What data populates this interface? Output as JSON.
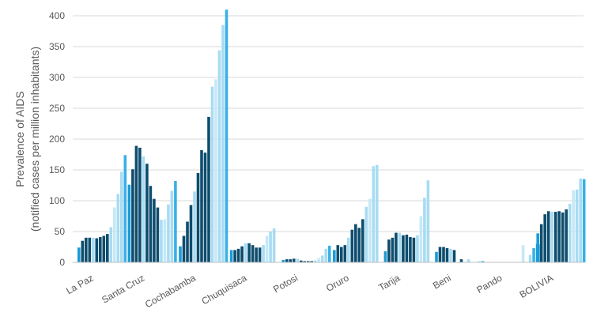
{
  "chart_data": {
    "type": "bar",
    "ylabel_line1": "Prevalence of AIDS",
    "ylabel_line2": "(notified cases per million inhabitants)",
    "ylim": [
      0,
      400
    ],
    "yticks": [
      0,
      50,
      100,
      150,
      200,
      250,
      300,
      350,
      400
    ],
    "grid": true,
    "legend": "none",
    "categories": [
      "La Paz",
      "Santa Cruz",
      "Cochabamba",
      "Chuquisaca",
      "Potosi",
      "Oruro",
      "Tarija",
      "Beni",
      "Pando",
      "BOLIVIA"
    ],
    "series_colors": [
      "#1a9bd7",
      "#0e4d6e",
      "#0e4d6e",
      "#0e4d6e",
      "#a8dcf2",
      "#0e4d6e",
      "#0e4d6e",
      "#0e4d6e",
      "#0e4d6e",
      "#a8dcf2",
      "#c6e8f7",
      "#a8dcf2",
      "#a8dcf2",
      "#39b0e5",
      "#1a9bd7",
      "#1a9bd7",
      "#1a9bd7",
      "#1a9bd7"
    ],
    "values": [
      [
        24,
        35,
        40,
        40,
        40,
        39,
        41,
        43,
        46,
        57,
        89,
        111,
        147,
        174
      ],
      [
        126,
        151,
        189,
        186,
        172,
        160,
        124,
        103,
        89,
        69,
        70,
        94,
        116,
        132
      ],
      [
        26,
        43,
        66,
        93,
        115,
        145,
        182,
        178,
        236,
        285,
        297,
        344,
        385,
        410
      ],
      [
        20,
        20,
        22,
        26,
        31,
        31,
        28,
        24,
        24,
        28,
        43,
        50,
        55
      ],
      [
        4,
        5,
        5,
        6,
        6,
        3,
        2,
        2,
        2,
        3,
        7,
        11,
        22,
        27
      ],
      [
        20,
        28,
        25,
        28,
        40,
        53,
        62,
        56,
        70,
        90,
        103,
        156,
        158
      ],
      [
        18,
        37,
        40,
        48,
        48,
        44,
        45,
        41,
        40,
        44,
        75,
        105,
        133
      ],
      [
        17,
        25,
        25,
        23,
        22,
        20,
        0,
        5,
        0,
        5,
        0,
        0,
        2,
        2
      ],
      [
        0,
        0,
        0,
        0,
        0,
        0,
        0,
        0,
        0,
        0,
        28,
        0,
        12,
        23,
        30,
        29
      ],
      [
        47,
        62,
        78,
        83,
        82,
        82,
        83,
        81,
        86,
        95,
        117,
        118,
        136,
        135
      ]
    ]
  }
}
